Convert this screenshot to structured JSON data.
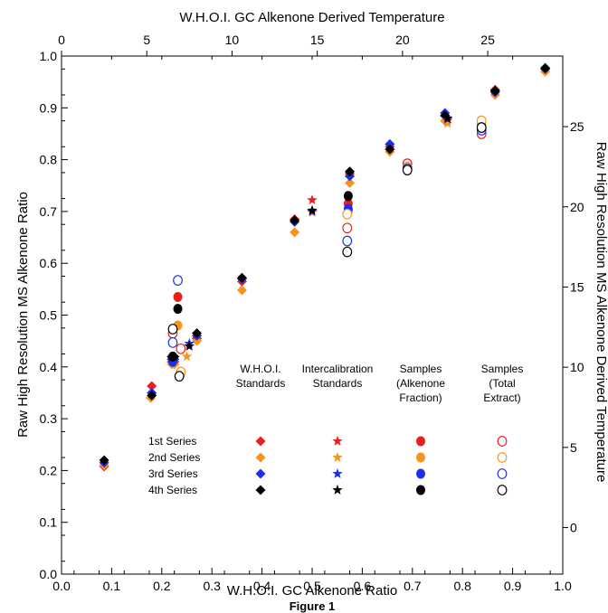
{
  "chart_data": {
    "type": "scatter",
    "title": "",
    "caption": "Figure 1",
    "xlabel": "W.H.O.I. GC Alkenone Ratio",
    "ylabel": "Raw High Resolution MS Alkenone Ratio",
    "x2label": "W.H.O.I. GC Alkenone Derived Temperature",
    "y2label": "Raw High Resolution MS Alkenone Derived Temperature",
    "xlim": [
      0.0,
      1.0
    ],
    "ylim": [
      0.0,
      1.0
    ],
    "x2lim": [
      0,
      29.4
    ],
    "y2lim": [
      -2.9,
      29.4
    ],
    "xticks": [
      "0.0",
      "0.1",
      "0.2",
      "0.3",
      "0.4",
      "0.5",
      "0.6",
      "0.7",
      "0.8",
      "0.9",
      "1.0"
    ],
    "yticks": [
      "0.0",
      "0.1",
      "0.2",
      "0.3",
      "0.4",
      "0.5",
      "0.6",
      "0.7",
      "0.8",
      "0.9",
      "1.0"
    ],
    "x2ticks": [
      {
        "v": 0,
        "label": "0"
      },
      {
        "v": 5,
        "label": "5"
      },
      {
        "v": 10,
        "label": "10"
      },
      {
        "v": 15,
        "label": "15"
      },
      {
        "v": 20,
        "label": "20"
      },
      {
        "v": 25,
        "label": "25"
      }
    ],
    "y2ticks": [
      {
        "v": 0,
        "label": "0"
      },
      {
        "v": 5,
        "label": "5"
      },
      {
        "v": 10,
        "label": "10"
      },
      {
        "v": 15,
        "label": "15"
      },
      {
        "v": 20,
        "label": "20"
      },
      {
        "v": 25,
        "label": "25"
      }
    ],
    "grid": false,
    "legend": {
      "placement": "bottom-right",
      "columns": [
        "W.H.O.I. Standards",
        "Intercalibration Standards",
        "Samples (Alkenone Fraction)",
        "Samples (Total Extract)"
      ],
      "column_lines": [
        [
          "W.H.O.I.",
          "Standards"
        ],
        [
          "Intercalibration",
          "Standards"
        ],
        [
          "Samples",
          "(Alkenone",
          "Fraction)"
        ],
        [
          "Samples",
          "(Total",
          "Extract)"
        ]
      ],
      "rows": [
        "1st Series",
        "2nd Series",
        "3rd Series",
        "4th Series"
      ]
    },
    "series_colors": {
      "1st Series": "#e8201c",
      "2nd Series": "#f7941d",
      "3rd Series": "#1c2fe8",
      "4th Series": "#000000"
    },
    "series": [
      {
        "group": "W.H.O.I. Standards",
        "marker": "diamond",
        "row": "1st Series",
        "x": [
          0.085,
          0.18,
          0.22,
          0.225,
          0.27,
          0.36,
          0.465,
          0.575,
          0.655,
          0.765,
          0.865,
          0.965
        ],
        "y": [
          0.208,
          0.363,
          0.41,
          0.41,
          0.455,
          0.565,
          0.685,
          0.773,
          0.825,
          0.885,
          0.935,
          0.975
        ]
      },
      {
        "group": "W.H.O.I. Standards",
        "marker": "diamond",
        "row": "2nd Series",
        "x": [
          0.085,
          0.178,
          0.22,
          0.225,
          0.27,
          0.36,
          0.465,
          0.575,
          0.655,
          0.765,
          0.865,
          0.965
        ],
        "y": [
          0.21,
          0.34,
          0.405,
          0.405,
          0.45,
          0.548,
          0.66,
          0.755,
          0.815,
          0.875,
          0.925,
          0.97
        ]
      },
      {
        "group": "W.H.O.I. Standards",
        "marker": "diamond",
        "row": "3rd Series",
        "x": [
          0.085,
          0.18,
          0.22,
          0.225,
          0.27,
          0.36,
          0.465,
          0.575,
          0.655,
          0.765,
          0.865,
          0.965
        ],
        "y": [
          0.215,
          0.35,
          0.415,
          0.415,
          0.46,
          0.57,
          0.68,
          0.768,
          0.83,
          0.89,
          0.93,
          0.975
        ]
      },
      {
        "group": "W.H.O.I. Standards",
        "marker": "diamond",
        "row": "4th Series",
        "x": [
          0.085,
          0.18,
          0.22,
          0.225,
          0.27,
          0.36,
          0.465,
          0.575,
          0.655,
          0.765,
          0.865,
          0.965
        ],
        "y": [
          0.22,
          0.345,
          0.42,
          0.42,
          0.465,
          0.572,
          0.683,
          0.777,
          0.82,
          0.885,
          0.933,
          0.977
        ]
      },
      {
        "group": "Intercalibration Standards",
        "marker": "star",
        "row": "1st Series",
        "x": [
          0.255,
          0.5,
          0.77
        ],
        "y": [
          0.44,
          0.722,
          0.875
        ]
      },
      {
        "group": "Intercalibration Standards",
        "marker": "star",
        "row": "2nd Series",
        "x": [
          0.25,
          0.5,
          0.77
        ],
        "y": [
          0.42,
          0.698,
          0.87
        ]
      },
      {
        "group": "Intercalibration Standards",
        "marker": "star",
        "row": "3rd Series",
        "x": [
          0.255,
          0.5,
          0.77
        ],
        "y": [
          0.445,
          0.7,
          0.878
        ]
      },
      {
        "group": "Intercalibration Standards",
        "marker": "star",
        "row": "4th Series",
        "x": [
          0.255,
          0.5,
          0.77
        ],
        "y": [
          0.44,
          0.702,
          0.88
        ]
      },
      {
        "group": "Samples (Alkenone Fraction)",
        "marker": "circle-filled",
        "row": "1st Series",
        "x": [
          0.232,
          0.572,
          0.838
        ],
        "y": [
          0.535,
          0.715,
          0.865
        ]
      },
      {
        "group": "Samples (Alkenone Fraction)",
        "marker": "circle-filled",
        "row": "2nd Series",
        "x": [
          0.232,
          0.572,
          0.838
        ],
        "y": [
          0.48,
          0.7,
          0.868
        ]
      },
      {
        "group": "Samples (Alkenone Fraction)",
        "marker": "circle-filled",
        "row": "3rd Series",
        "x": [
          0.222,
          0.572,
          0.838
        ],
        "y": [
          0.41,
          0.705,
          0.862
        ]
      },
      {
        "group": "Samples (Alkenone Fraction)",
        "marker": "circle-filled",
        "row": "4th Series",
        "x": [
          0.232,
          0.222,
          0.572,
          0.838
        ],
        "y": [
          0.512,
          0.42,
          0.73,
          0.872
        ]
      },
      {
        "group": "Samples (Total Extract)",
        "marker": "circle-open",
        "row": "1st Series",
        "x": [
          0.222,
          0.238,
          0.57,
          0.69,
          0.838
        ],
        "y": [
          0.465,
          0.435,
          0.668,
          0.792,
          0.85
        ]
      },
      {
        "group": "Samples (Total Extract)",
        "marker": "circle-open",
        "row": "2nd Series",
        "x": [
          0.238,
          0.57,
          0.69,
          0.838
        ],
        "y": [
          0.39,
          0.695,
          0.786,
          0.875
        ]
      },
      {
        "group": "Samples (Total Extract)",
        "marker": "circle-open",
        "row": "3rd Series",
        "x": [
          0.232,
          0.222,
          0.57,
          0.69,
          0.838
        ],
        "y": [
          0.567,
          0.447,
          0.643,
          0.783,
          0.857
        ]
      },
      {
        "group": "Samples (Total Extract)",
        "marker": "circle-open",
        "row": "4th Series",
        "x": [
          0.222,
          0.235,
          0.57,
          0.69,
          0.838
        ],
        "y": [
          0.473,
          0.382,
          0.622,
          0.78,
          0.862
        ]
      }
    ]
  }
}
